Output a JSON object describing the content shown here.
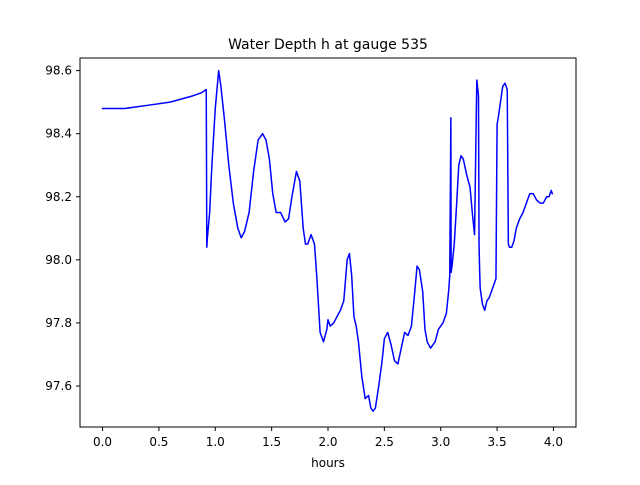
{
  "chart_data": {
    "type": "line",
    "title": "Water Depth h at gauge 535",
    "xlabel": "hours",
    "ylabel": "",
    "xlim": [
      -0.2,
      4.2
    ],
    "ylim": [
      97.47,
      98.64
    ],
    "xticks": [
      0.0,
      0.5,
      1.0,
      1.5,
      2.0,
      2.5,
      3.0,
      3.5,
      4.0
    ],
    "xtick_labels": [
      "0.0",
      "0.5",
      "1.0",
      "1.5",
      "2.0",
      "2.5",
      "3.0",
      "3.5",
      "4.0"
    ],
    "yticks": [
      97.6,
      97.8,
      98.0,
      98.2,
      98.4,
      98.6
    ],
    "ytick_labels": [
      "97.6",
      "97.8",
      "98.0",
      "98.2",
      "98.4",
      "98.6"
    ],
    "grid": false,
    "legend": "none",
    "series": [
      {
        "color": "#0000ff",
        "x": [
          0.0,
          0.2,
          0.4,
          0.6,
          0.7,
          0.8,
          0.88,
          0.92,
          0.925,
          0.93,
          0.95,
          0.97,
          1.0,
          1.03,
          1.05,
          1.08,
          1.12,
          1.16,
          1.2,
          1.23,
          1.26,
          1.3,
          1.34,
          1.38,
          1.42,
          1.45,
          1.48,
          1.51,
          1.54,
          1.56,
          1.58,
          1.62,
          1.65,
          1.68,
          1.72,
          1.75,
          1.78,
          1.8,
          1.82,
          1.85,
          1.88,
          1.9,
          1.93,
          1.96,
          1.99,
          2.0,
          2.02,
          2.05,
          2.08,
          2.11,
          2.14,
          2.17,
          2.19,
          2.21,
          2.23,
          2.25,
          2.27,
          2.3,
          2.33,
          2.36,
          2.38,
          2.4,
          2.42,
          2.45,
          2.48,
          2.5,
          2.53,
          2.56,
          2.59,
          2.62,
          2.65,
          2.68,
          2.71,
          2.74,
          2.77,
          2.79,
          2.81,
          2.84,
          2.86,
          2.88,
          2.91,
          2.95,
          2.98,
          3.02,
          3.05,
          3.07,
          3.08,
          3.09,
          3.092,
          3.1,
          3.12,
          3.14,
          3.16,
          3.18,
          3.2,
          3.23,
          3.26,
          3.28,
          3.3,
          3.32,
          3.335,
          3.34,
          3.345,
          3.35,
          3.37,
          3.39,
          3.41,
          3.43,
          3.45,
          3.47,
          3.49,
          3.5,
          3.51,
          3.53,
          3.55,
          3.57,
          3.59,
          3.6,
          3.61,
          3.63,
          3.65,
          3.67,
          3.7,
          3.73,
          3.76,
          3.79,
          3.82,
          3.85,
          3.88,
          3.91,
          3.94,
          3.96,
          3.98,
          3.99
        ],
        "y": [
          98.48,
          98.48,
          98.49,
          98.5,
          98.51,
          98.52,
          98.53,
          98.54,
          98.04,
          98.07,
          98.15,
          98.3,
          98.48,
          98.6,
          98.55,
          98.45,
          98.3,
          98.18,
          98.1,
          98.07,
          98.09,
          98.15,
          98.28,
          98.38,
          98.4,
          98.38,
          98.32,
          98.21,
          98.15,
          98.15,
          98.15,
          98.12,
          98.13,
          98.2,
          98.28,
          98.25,
          98.1,
          98.05,
          98.05,
          98.08,
          98.05,
          97.95,
          97.77,
          97.74,
          97.78,
          97.81,
          97.79,
          97.8,
          97.82,
          97.84,
          97.87,
          98.0,
          98.02,
          97.95,
          97.82,
          97.79,
          97.74,
          97.63,
          97.56,
          97.57,
          97.53,
          97.52,
          97.53,
          97.6,
          97.68,
          97.75,
          97.77,
          97.73,
          97.68,
          97.67,
          97.72,
          97.77,
          97.76,
          97.79,
          97.9,
          97.98,
          97.97,
          97.9,
          97.78,
          97.74,
          97.72,
          97.74,
          97.78,
          97.8,
          97.83,
          97.9,
          97.95,
          98.45,
          97.96,
          97.98,
          98.05,
          98.17,
          98.3,
          98.33,
          98.32,
          98.27,
          98.23,
          98.15,
          98.08,
          98.57,
          98.52,
          98.05,
          97.97,
          97.91,
          97.86,
          97.84,
          97.87,
          97.88,
          97.9,
          97.92,
          97.94,
          98.43,
          98.45,
          98.5,
          98.55,
          98.56,
          98.54,
          98.05,
          98.04,
          98.04,
          98.06,
          98.1,
          98.13,
          98.15,
          98.18,
          98.21,
          98.21,
          98.19,
          98.18,
          98.18,
          98.2,
          98.2,
          98.22,
          98.21
        ]
      }
    ]
  }
}
